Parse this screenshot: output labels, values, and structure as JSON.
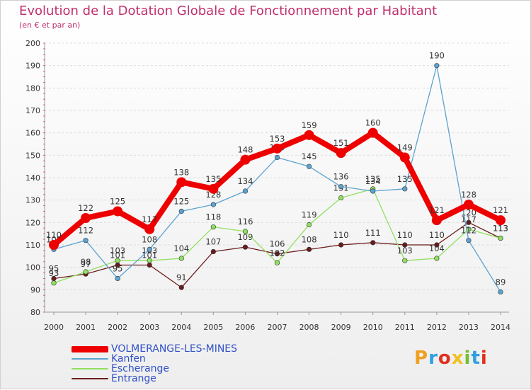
{
  "title": "Evolution de la Dotation Globale de Fonctionnement par Habitant",
  "subtitle": "(en € et par an)",
  "logo": {
    "letters": [
      "P",
      "r",
      "o",
      "x",
      "i",
      "t",
      "i"
    ],
    "colors": [
      "#f0a020",
      "#30a0e0",
      "#e03020",
      "#f0c020",
      "#70c030",
      "#30a0e0",
      "#e03020"
    ]
  },
  "chart_data": {
    "type": "line",
    "title": "Evolution de la Dotation Globale de Fonctionnement par Habitant",
    "ylabel": "(en € et par an)",
    "xlabel": "",
    "ylim": [
      80,
      200
    ],
    "yticks": [
      80,
      90,
      100,
      110,
      120,
      130,
      140,
      150,
      160,
      170,
      180,
      190,
      200
    ],
    "categories": [
      "2000",
      "2001",
      "2002",
      "2003",
      "2004",
      "2005",
      "2006",
      "2007",
      "2008",
      "2009",
      "2010",
      "2011",
      "2012",
      "2013",
      "2014"
    ],
    "series": [
      {
        "name": "Entrange",
        "color": "#6b1b1b",
        "values": [
          95,
          97,
          101,
          101,
          91,
          107,
          109,
          106,
          108,
          110,
          111,
          110,
          110,
          120,
          113
        ]
      },
      {
        "name": "Escherange",
        "color": "#90e060",
        "values": [
          93,
          98,
          103,
          103,
          104,
          118,
          116,
          102,
          119,
          131,
          135,
          103,
          104,
          117,
          113
        ]
      },
      {
        "name": "Kanfen",
        "color": "#5ba3d0",
        "values": [
          108,
          112,
          95,
          108,
          125,
          128,
          134,
          149,
          145,
          136,
          134,
          135,
          190,
          112,
          89
        ]
      },
      {
        "name": "VOLMERANGE-LES-MINES",
        "color": "#ee0000",
        "values": [
          110,
          122,
          125,
          117,
          138,
          135,
          148,
          153,
          159,
          151,
          160,
          149,
          121,
          128,
          121
        ]
      }
    ],
    "legend_order": [
      "VOLMERANGE-LES-MINES",
      "Kanfen",
      "Escherange",
      "Entrange"
    ],
    "grid": true,
    "legend_position": "bottom-left"
  }
}
